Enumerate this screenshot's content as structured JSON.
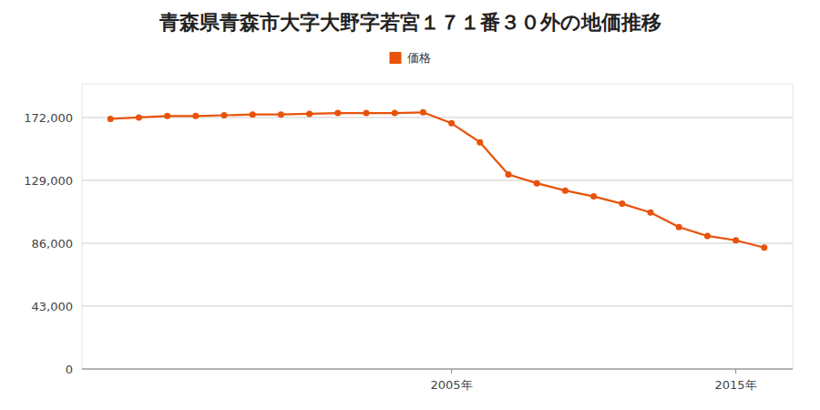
{
  "chart_data": {
    "type": "line",
    "title": "青森県青森市大字大野字若宮１７１番３０外の地価推移",
    "x": [
      1993,
      1994,
      1995,
      1996,
      1997,
      1998,
      1999,
      2000,
      2001,
      2002,
      2003,
      2004,
      2005,
      2006,
      2007,
      2008,
      2009,
      2010,
      2011,
      2012,
      2013,
      2014,
      2015,
      2016
    ],
    "series": [
      {
        "name": "価格",
        "color": "#e8520a",
        "marker": "circle",
        "values": [
          171000,
          172000,
          173000,
          173000,
          173500,
          174000,
          174000,
          174500,
          175000,
          175000,
          175000,
          175500,
          168000,
          155000,
          133000,
          127000,
          122000,
          118000,
          113000,
          107000,
          97000,
          91000,
          88000,
          83000
        ]
      }
    ],
    "xlim": [
      1992,
      2017
    ],
    "xticks": [
      {
        "value": 2005,
        "label": "2005年"
      },
      {
        "value": 2015,
        "label": "2015年"
      }
    ],
    "ylim": [
      0,
      195000
    ],
    "yticks": [
      0,
      {
        "value": 43000,
        "label": "43,000"
      },
      {
        "value": 86000,
        "label": "86,000"
      },
      {
        "value": 129000,
        "label": "129,000"
      },
      {
        "value": 172000,
        "label": "172,000"
      }
    ],
    "grid": true,
    "legend": "top"
  }
}
